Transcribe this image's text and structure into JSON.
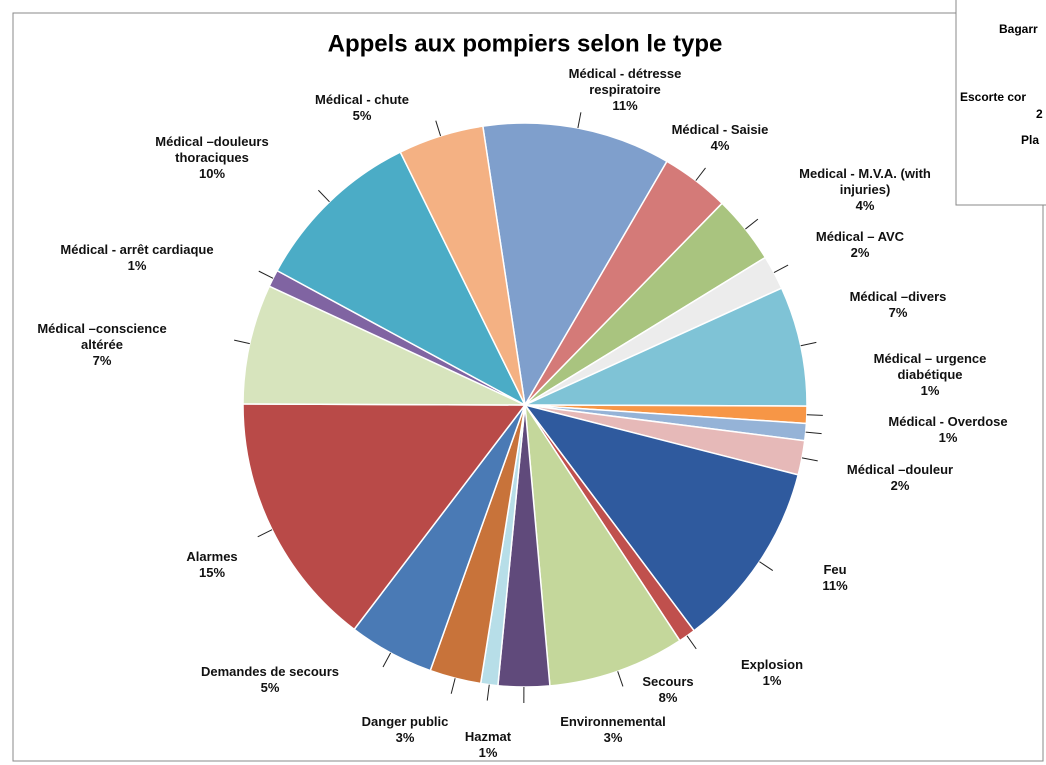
{
  "chart_data": {
    "type": "pie",
    "title": "Appels aux pompiers selon le type",
    "categories": [
      "Médical - détresse respiratoire",
      "Médical - Saisie",
      "Medical - M.V.A. (with injuries)",
      "Médical – AVC",
      "Médical –divers",
      "Médical – urgence diabétique",
      "Médical - Overdose",
      "Médical –douleur",
      "Feu",
      "Explosion",
      "Secours",
      "Environnemental",
      "Hazmat",
      "Danger public",
      "Demandes de secours",
      "Alarmes",
      "Médical –conscience altérée",
      "Médical - arrêt cardiaque",
      "Médical –douleurs thoraciques",
      "Médical - chute"
    ],
    "values": [
      11,
      4,
      4,
      2,
      7,
      1,
      1,
      2,
      11,
      1,
      8,
      3,
      1,
      3,
      5,
      15,
      7,
      1,
      10,
      5
    ],
    "value_labels": [
      "11%",
      "4%",
      "4%",
      "2%",
      "7%",
      "1%",
      "1%",
      "2%",
      "11%",
      "1%",
      "8%",
      "3%",
      "1%",
      "3%",
      "5%",
      "15%",
      "7%",
      "1%",
      "10%",
      "5%"
    ],
    "colors": [
      "#7f9fcc",
      "#d47a78",
      "#a9c47f",
      "#ececec",
      "#7fc3d6",
      "#f79646",
      "#95b3d7",
      "#e6b9b8",
      "#2f5a9e",
      "#c0504d",
      "#c4d79b",
      "#604a7b",
      "#b7dee8",
      "#c8733a",
      "#4a7ab5",
      "#b94a48",
      "#d7e4bd",
      "#8064a2",
      "#4bacc6",
      "#f4b183"
    ]
  },
  "side_panel": {
    "lines": [
      "Bagarr",
      "Escorte cor",
      "2",
      "Pla"
    ]
  }
}
